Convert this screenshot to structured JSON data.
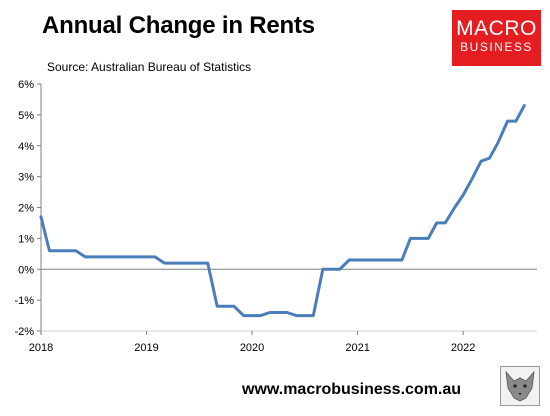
{
  "header": {
    "title": "Annual Change in Rents",
    "source": "Source: Australian Bureau of Statistics"
  },
  "logo": {
    "line1": "MACRO",
    "line2": "BUSINESS",
    "color": "#e41e20"
  },
  "footer": {
    "url": "www.macrobusiness.com.au",
    "icon": "wolf-logo-icon"
  },
  "chart_data": {
    "type": "line",
    "title": "Annual Change in Rents",
    "subtitle": "Source: Australian Bureau of Statistics",
    "xlabel": "",
    "ylabel": "",
    "ylim": [
      -2,
      6
    ],
    "xlim": [
      2018,
      2022.7
    ],
    "grid": false,
    "line_color": "#4a7ebb",
    "x_ticks": [
      2018,
      2019,
      2020,
      2021,
      2022
    ],
    "x_tick_labels": [
      "2018",
      "2019",
      "2020",
      "2021",
      "2022"
    ],
    "y_ticks": [
      -2,
      -1,
      0,
      1,
      2,
      3,
      4,
      5,
      6
    ],
    "y_tick_labels": [
      "-2%",
      "-1%",
      "0%",
      "1%",
      "2%",
      "3%",
      "4%",
      "5%",
      "6%"
    ],
    "series": [
      {
        "x": [
          2018.0,
          2018.08,
          2018.33,
          2018.42,
          2019.08,
          2019.17,
          2019.58,
          2019.67,
          2019.83,
          2019.92,
          2020.08,
          2020.17,
          2020.33,
          2020.42,
          2020.58,
          2020.67,
          2020.83,
          2020.92,
          2021.42,
          2021.5,
          2021.67,
          2021.75,
          2021.83,
          2021.92,
          2022.0,
          2022.08,
          2022.17,
          2022.25,
          2022.33,
          2022.42,
          2022.5,
          2022.58
        ],
        "y": [
          1.7,
          0.6,
          0.6,
          0.4,
          0.4,
          0.2,
          0.2,
          -1.2,
          -1.2,
          -1.5,
          -1.5,
          -1.4,
          -1.4,
          -1.5,
          -1.5,
          0.0,
          0.0,
          0.3,
          0.3,
          1.0,
          1.0,
          1.5,
          1.5,
          2.0,
          2.4,
          2.9,
          3.5,
          3.6,
          4.1,
          4.8,
          4.8,
          5.3
        ]
      }
    ]
  }
}
